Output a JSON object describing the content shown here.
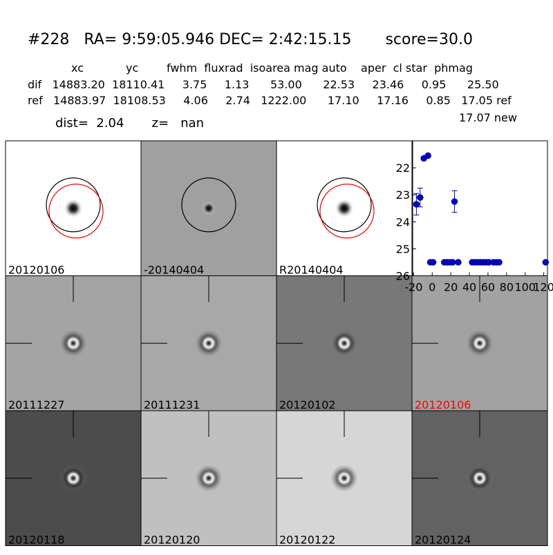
{
  "header": {
    "title": "#228   RA= 9:59:05.946 DEC= 2:42:15.15       score=30.0",
    "columns": "xc            yc        fwhm  fluxrad  isoarea mag auto    aper  cl star  phmag",
    "rows": [
      "dif   14883.20  18110.41     3.75     1.13      53.00      22.53     23.46     0.95      25.50",
      "ref   14883.97  18108.53     4.06     2.74   1222.00      17.10     17.16     0.85   17.05 ref"
    ],
    "extra": "17.07 new",
    "dist": "dist=  2.04       z=   nan"
  },
  "panels": [
    {
      "label": "20120106"
    },
    {
      "label": "-20140404"
    },
    {
      "label": "R20140404"
    },
    {
      "label": "20111227"
    },
    {
      "label": "20111231"
    },
    {
      "label": "20120102"
    },
    {
      "label": "20120106",
      "color": "#ff0000"
    },
    {
      "label": "20120118"
    },
    {
      "label": "20120120"
    },
    {
      "label": "20120122"
    },
    {
      "label": "20120124"
    }
  ],
  "chart_data": {
    "type": "scatter",
    "color": "#0000cc",
    "x": [
      -17,
      -13,
      -9,
      -4.5,
      -2,
      1,
      13,
      16,
      19,
      22,
      24,
      28,
      43,
      46,
      49,
      52,
      55,
      58,
      61,
      66,
      69,
      72,
      122
    ],
    "y": [
      23.35,
      23.1,
      21.65,
      21.55,
      25.5,
      25.5,
      25.5,
      25.5,
      25.5,
      25.5,
      23.25,
      25.5,
      25.5,
      25.5,
      25.5,
      25.5,
      25.5,
      25.5,
      25.5,
      25.5,
      25.5,
      25.5,
      25.5
    ],
    "yerr": [
      0.4,
      0.35,
      null,
      null,
      null,
      null,
      null,
      null,
      null,
      null,
      0.4,
      null,
      null,
      null,
      null,
      null,
      null,
      null,
      null,
      null,
      null,
      null,
      null
    ],
    "xlim": [
      -21,
      124
    ],
    "ylim": [
      26,
      21
    ],
    "xticks": [
      -20,
      0,
      20,
      40,
      60,
      80,
      100,
      120
    ],
    "yticks": [
      22,
      23,
      24,
      25,
      26
    ]
  }
}
